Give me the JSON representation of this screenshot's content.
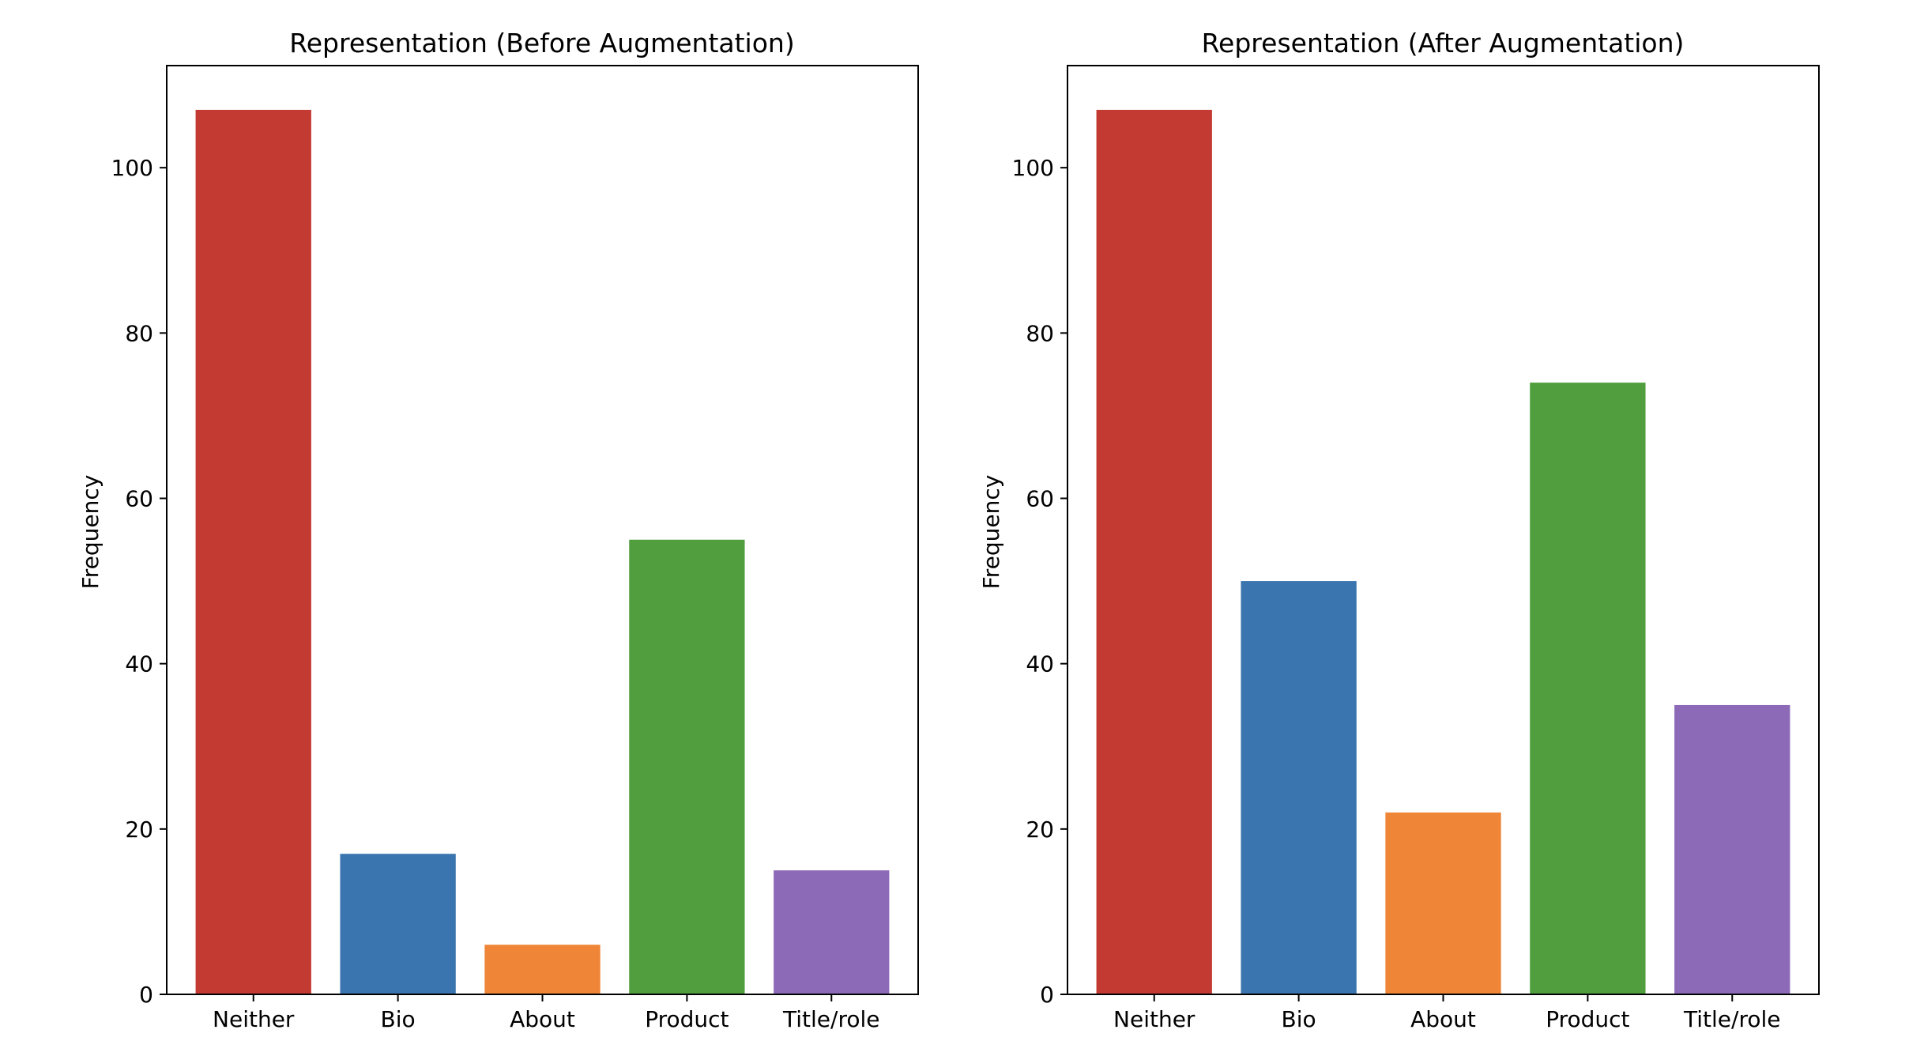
{
  "chart_data": [
    {
      "type": "bar",
      "title": "Representation (Before Augmentation)",
      "xlabel": "",
      "ylabel": "Frequency",
      "categories": [
        "Neither",
        "Bio",
        "About",
        "Product",
        "Title/role"
      ],
      "values": [
        107,
        17,
        6,
        55,
        15
      ],
      "colors": [
        "#c33a32",
        "#3b75af",
        "#ef8536",
        "#519e3e",
        "#8d6ab8"
      ],
      "ylim": [
        0,
        112.35
      ],
      "yticks": [
        0,
        20,
        40,
        60,
        80,
        100
      ],
      "grid": false,
      "legend": "none"
    },
    {
      "type": "bar",
      "title": "Representation (After Augmentation)",
      "xlabel": "",
      "ylabel": "Frequency",
      "categories": [
        "Neither",
        "Bio",
        "About",
        "Product",
        "Title/role"
      ],
      "values": [
        107,
        50,
        22,
        74,
        35
      ],
      "colors": [
        "#c33a32",
        "#3b75af",
        "#ef8536",
        "#519e3e",
        "#8d6ab8"
      ],
      "ylim": [
        0,
        112.35
      ],
      "yticks": [
        0,
        20,
        40,
        60,
        80,
        100
      ],
      "grid": false,
      "legend": "none"
    }
  ]
}
